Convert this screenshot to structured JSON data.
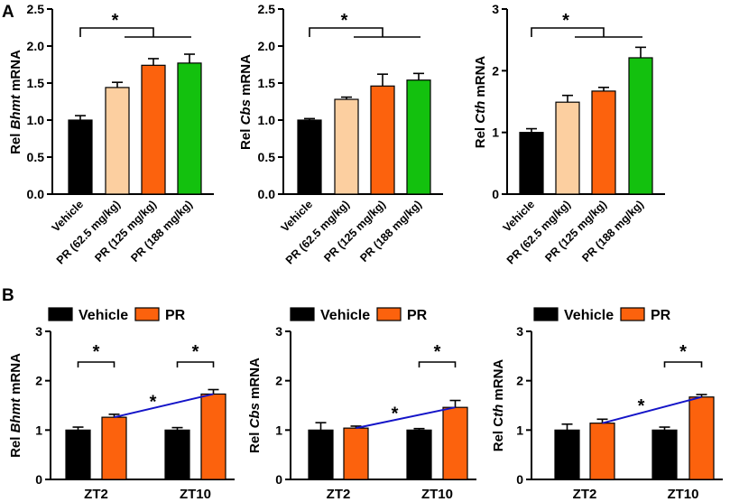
{
  "panels": {
    "a": "A",
    "b": "B"
  },
  "colors": {
    "Vehicle": "#000000",
    "PR (62.5 mg/kg)": "#fccfa0",
    "PR (125 mg/kg)": "#fc620d",
    "PR (188 mg/kg)": "#13c10e",
    "PR": "#fc620d",
    "trend": "#1414c8"
  },
  "chart_data": [
    {
      "id": "a1",
      "type": "bar",
      "gene": "Bhmt",
      "ylabel": [
        "Rel ",
        "Bhmt",
        " mRNA"
      ],
      "ylim": [
        0,
        2.5
      ],
      "yticks": [
        "0.0",
        "0.5",
        "1.0",
        "1.5",
        "2.0",
        "2.5"
      ],
      "categories": [
        "Vehicle",
        "PR (62.5 mg/kg)",
        "PR (125 mg/kg)",
        "PR (188 mg/kg)"
      ],
      "values": [
        1.0,
        1.44,
        1.74,
        1.77
      ],
      "errors": [
        0.06,
        0.07,
        0.09,
        0.12
      ],
      "significance": "*"
    },
    {
      "id": "a2",
      "type": "bar",
      "gene": "Cbs",
      "ylabel": [
        "Rel ",
        "Cbs",
        " mRNA"
      ],
      "ylim": [
        0,
        2.5
      ],
      "yticks": [
        "0.0",
        "0.5",
        "1.0",
        "1.5",
        "2.0",
        "2.5"
      ],
      "categories": [
        "Vehicle",
        "PR (62.5 mg/kg)",
        "PR (125 mg/kg)",
        "PR (188 mg/kg)"
      ],
      "values": [
        1.0,
        1.28,
        1.46,
        1.54
      ],
      "errors": [
        0.02,
        0.03,
        0.16,
        0.09
      ],
      "significance": "*"
    },
    {
      "id": "a3",
      "type": "bar",
      "gene": "Cth",
      "ylabel": [
        "Rel ",
        "Cth",
        " mRNA"
      ],
      "ylim": [
        0,
        3
      ],
      "yticks": [
        "0",
        "1",
        "2",
        "3"
      ],
      "categories": [
        "Vehicle",
        "PR (62.5 mg/kg)",
        "PR (125 mg/kg)",
        "PR (188 mg/kg)"
      ],
      "values": [
        1.0,
        1.49,
        1.67,
        2.21
      ],
      "errors": [
        0.06,
        0.11,
        0.06,
        0.17
      ],
      "significance": "*"
    },
    {
      "id": "b1",
      "type": "bar",
      "gene": "Bhmt",
      "ylabel": [
        "Rel ",
        "Bhmt",
        " mRNA"
      ],
      "ylim": [
        0,
        3
      ],
      "yticks": [
        "0",
        "1",
        "2",
        "3"
      ],
      "categories": [
        "ZT2",
        "ZT10"
      ],
      "series": [
        {
          "name": "Vehicle",
          "values": [
            1.0,
            1.0
          ],
          "errors": [
            0.06,
            0.05
          ]
        },
        {
          "name": "PR",
          "values": [
            1.26,
            1.73
          ],
          "errors": [
            0.06,
            0.09
          ]
        }
      ],
      "significance": [
        "*",
        "*",
        "*"
      ]
    },
    {
      "id": "b2",
      "type": "bar",
      "gene": "Cbs",
      "ylabel": [
        "Rel ",
        "Cbs",
        " mRNA"
      ],
      "ylim": [
        0,
        3
      ],
      "yticks": [
        "0",
        "1",
        "2",
        "3"
      ],
      "categories": [
        "ZT2",
        "ZT10"
      ],
      "series": [
        {
          "name": "Vehicle",
          "values": [
            1.0,
            1.0
          ],
          "errors": [
            0.15,
            0.03
          ]
        },
        {
          "name": "PR",
          "values": [
            1.04,
            1.46
          ],
          "errors": [
            0.04,
            0.14
          ]
        }
      ],
      "significance": [
        "*",
        "*"
      ]
    },
    {
      "id": "b3",
      "type": "bar",
      "gene": "Cth",
      "ylabel": [
        "Rel C",
        "th",
        " mRNA"
      ],
      "ylim": [
        0,
        3
      ],
      "yticks": [
        "0",
        "1",
        "2",
        "3"
      ],
      "categories": [
        "ZT2",
        "ZT10"
      ],
      "series": [
        {
          "name": "Vehicle",
          "values": [
            1.0,
            1.0
          ],
          "errors": [
            0.12,
            0.06
          ]
        },
        {
          "name": "PR",
          "values": [
            1.14,
            1.67
          ],
          "errors": [
            0.08,
            0.05
          ]
        }
      ],
      "significance": [
        "*",
        "*"
      ]
    }
  ],
  "legend": [
    {
      "name": "Vehicle"
    },
    {
      "name": "PR"
    }
  ]
}
